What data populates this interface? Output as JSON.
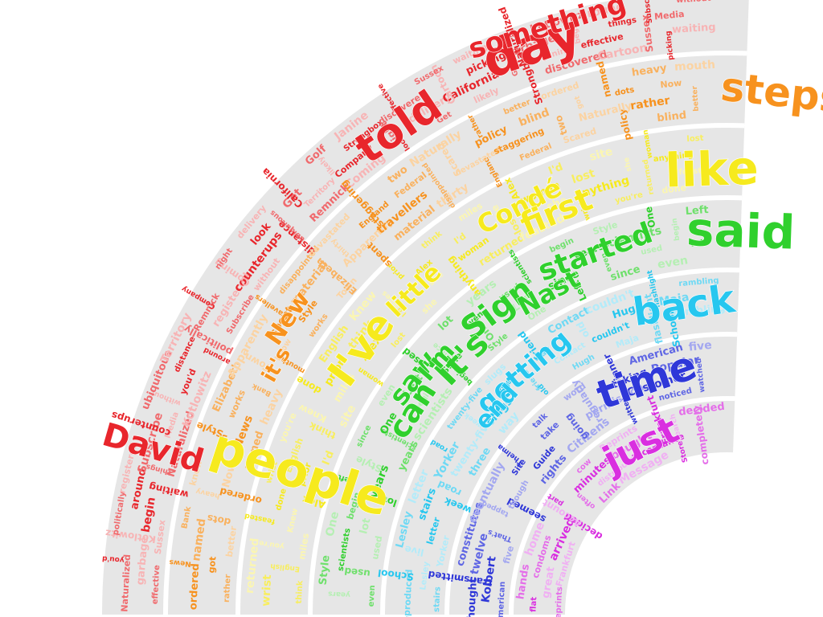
{
  "bands": [
    {
      "name": "red",
      "colors": [
        "#e8262c",
        "#f06a6d",
        "#f7b4b5"
      ],
      "big": [
        {
          "text": "day"
        },
        {
          "text": "told"
        },
        {
          "text": "David"
        },
        {
          "text": "something"
        }
      ],
      "words": [
        "effective",
        "Sussex",
        "waiting",
        "Naturalized",
        "Kotlowitz",
        "around",
        "Subscribe",
        "without",
        "distance",
        "Remnick",
        "Coming",
        "look",
        "Get",
        "likely",
        "Strongbox",
        "discovered",
        "Cartoon",
        "picking",
        "garbage",
        "begin",
        "things",
        "Media",
        "you'd",
        "politically",
        "registered",
        "counterups",
        "ubiquitous",
        "Territory",
        "Company",
        "night",
        "delivery",
        "California",
        "Golf",
        "Janine"
      ]
    },
    {
      "name": "orange",
      "colors": [
        "#f7921e",
        "#f9b15e",
        "#fbd3a2"
      ],
      "big": [
        {
          "text": "steps"
        },
        {
          "text": "New"
        },
        {
          "text": "it's"
        }
      ],
      "words": [
        "rather",
        "better",
        "ordered",
        "named",
        "heavy",
        "mouth",
        "works",
        "Town",
        "spent",
        "material",
        "thirty",
        "England",
        "Federal",
        "Scared",
        "policy",
        "blind",
        "got",
        "dots",
        "Now",
        "News",
        "Bank",
        "know",
        "Style",
        "Elizabeth",
        "Apparently",
        "travellers",
        "disappointed",
        "devastated",
        "staggering",
        "two",
        "Naturally"
      ]
    },
    {
      "name": "yellow",
      "colors": [
        "#f6ea1e",
        "#f8ee5e",
        "#fbf6b2"
      ],
      "big": [
        {
          "text": "people"
        },
        {
          "text": "I've"
        },
        {
          "text": "like"
        },
        {
          "text": "Condé"
        },
        {
          "text": "first"
        },
        {
          "text": "little"
        }
      ],
      "words": [
        "think",
        "miles",
        "Alex",
        "I'd",
        "site",
        "woman",
        "lost",
        "she",
        "anything",
        "returned",
        "feasted",
        "wrist",
        "you're",
        "done",
        "English",
        "Knew",
        "prior"
      ]
    },
    {
      "name": "green",
      "colors": [
        "#30d02d",
        "#6fe06c",
        "#b5efb3"
      ],
      "big": [
        {
          "text": "said"
        },
        {
          "text": "Sign"
        },
        {
          "text": "Nast"
        },
        {
          "text": "started"
        },
        {
          "text": "It's"
        },
        {
          "text": "can"
        },
        {
          "text": "saw"
        },
        {
          "text": "I'm"
        }
      ],
      "words": [
        "even",
        "used",
        "lot",
        "years",
        "scientists",
        "begin",
        "Style",
        "One",
        "Left",
        "since"
      ]
    },
    {
      "name": "sky",
      "colors": [
        "#27c7ef",
        "#6fd9f4",
        "#b3ebf9"
      ],
      "big": [
        {
          "text": "back"
        },
        {
          "text": "getting"
        },
        {
          "text": "end"
        }
      ],
      "words": [
        "stairs",
        "Yorker",
        "week",
        "three",
        "way",
        "old",
        "Hugh",
        "Maja",
        "School",
        "Lesley",
        "letter",
        "road",
        "twenty-five",
        "slugs",
        "friend",
        "Contact",
        "couldn't",
        "flashlight",
        "rambling",
        "reproduced",
        "live"
      ]
    },
    {
      "name": "blue",
      "colors": [
        "#2f37d8",
        "#5f66e4",
        "#a3a7f0"
      ],
      "big": [
        {
          "text": "time"
        }
      ],
      "words": [
        "American",
        "five",
        "seemed",
        "rights",
        "Citizens",
        "written",
        "noticed",
        "Kolbert",
        "That's",
        "though",
        "Guide",
        "going",
        "permission",
        "Customer",
        "watched",
        "thought",
        "twelve",
        "tapped",
        "Site",
        "take",
        "regularly",
        "taking",
        "Popular",
        "transmitted",
        "constitutes",
        "eventually",
        "Thelma",
        "talk",
        "word",
        "dinner"
      ]
    },
    {
      "name": "magenta",
      "colors": [
        "#d92fe0",
        "#e46ee9",
        "#f0b0f3"
      ],
      "big": [
        {
          "text": "just"
        }
      ],
      "words": [
        "Reprints",
        "Frankfurt",
        "decided",
        "Link",
        "Message",
        "Store",
        "great",
        "arrived",
        "often",
        "distributed",
        "acceptance",
        "completely",
        "flat",
        "condoms",
        "Account",
        "minutes",
        "bought",
        "Search",
        "hands",
        "home",
        "part",
        "cow"
      ]
    }
  ]
}
